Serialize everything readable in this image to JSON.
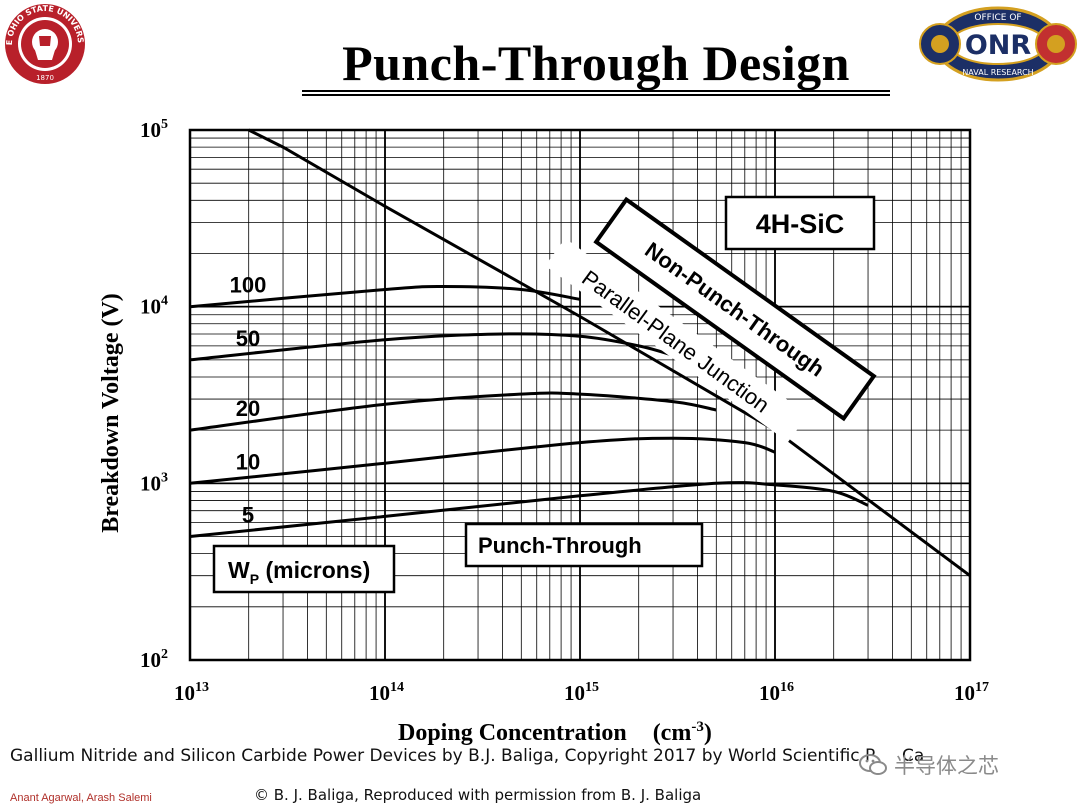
{
  "slide": {
    "title": "Punch-Through Design",
    "caption": "Gallium Nitride and Silicon Carbide Power Devices by B.J. Baliga, Copyright 2017 by World Scientific P",
    "caption_tail": "Ca",
    "credit": "© B. J. Baliga,  Reproduced with permission from B. J. Baliga",
    "authors": "Anant Agarwal, Arash Salemi",
    "watermark": "半导体之芯",
    "logo_left": {
      "icon": "ohio-state-university-seal-icon",
      "ring_text": "THE OHIO STATE UNIVERSITY",
      "year": "1870"
    },
    "logo_right": {
      "icon": "office-of-naval-research-logo-icon",
      "arc_top": "OFFICE OF",
      "word": "ONR",
      "arc_bottom": "NAVAL RESEARCH"
    },
    "colors": {
      "osu_red": "#b8202a",
      "onr_navy": "#1c2f66",
      "onr_gold": "#d4a020",
      "author_red": "#b0302a"
    }
  },
  "chart_data": {
    "type": "line",
    "xlabel": "Doping Concentration",
    "xunit_base": "(cm",
    "xunit_exp": "-3",
    "xunit_close": ")",
    "ylabel": "Breakdown  Voltage  (V)",
    "xscale": "log",
    "yscale": "log",
    "xlim": [
      10000000000000.0,
      1e+17
    ],
    "ylim": [
      100,
      100000
    ],
    "x_ticks": [
      {
        "base": "10",
        "exp": "13"
      },
      {
        "base": "10",
        "exp": "14"
      },
      {
        "base": "10",
        "exp": "15"
      },
      {
        "base": "10",
        "exp": "16"
      },
      {
        "base": "10",
        "exp": "17"
      }
    ],
    "y_ticks": [
      {
        "base": "10",
        "exp": "2"
      },
      {
        "base": "10",
        "exp": "3"
      },
      {
        "base": "10",
        "exp": "4"
      },
      {
        "base": "10",
        "exp": "5"
      }
    ],
    "grid": true,
    "material_label": "4H-SiC",
    "legend_title_base": "W",
    "legend_title_sub": "P",
    "legend_title_rest": " (microns)",
    "region_labels": {
      "non_punch_through": "Non-Punch-Through",
      "parallel_plane": "Parallel-Plane Junction",
      "punch_through": "Punch-Through"
    },
    "non_punch_through_line": {
      "x": [
        20000000000000.0,
        30000000000000.0,
        100000000000000.0,
        1000000000000000.0,
        1e+16,
        1e+17
      ],
      "y": [
        100000,
        80000,
        37000,
        8800,
        2000,
        300
      ]
    },
    "series": [
      {
        "name": "100",
        "x": [
          10000000000000.0,
          100000000000000.0,
          200000000000000.0,
          500000000000000.0,
          1000000000000000.0
        ],
        "y": [
          10000,
          12500,
          13000,
          12500,
          11000
        ]
      },
      {
        "name": "50",
        "x": [
          10000000000000.0,
          100000000000000.0,
          400000000000000.0,
          1000000000000000.0,
          2000000000000000.0,
          3000000000000000.0
        ],
        "y": [
          5000,
          6500,
          7000,
          6800,
          6000,
          5300
        ]
      },
      {
        "name": "20",
        "x": [
          10000000000000.0,
          100000000000000.0,
          500000000000000.0,
          1000000000000000.0,
          3000000000000000.0,
          5000000000000000.0
        ],
        "y": [
          2000,
          2800,
          3200,
          3200,
          2900,
          2600
        ]
      },
      {
        "name": "10",
        "x": [
          10000000000000.0,
          100000000000000.0,
          1000000000000000.0,
          3000000000000000.0,
          7000000000000000.0,
          1e+16
        ],
        "y": [
          1000,
          1300,
          1700,
          1800,
          1700,
          1500
        ]
      },
      {
        "name": "5",
        "x": [
          10000000000000.0,
          100000000000000.0,
          1000000000000000.0,
          5000000000000000.0,
          1e+16,
          2e+16,
          3e+16
        ],
        "y": [
          500,
          650,
          850,
          1000,
          980,
          900,
          750
        ]
      }
    ]
  }
}
